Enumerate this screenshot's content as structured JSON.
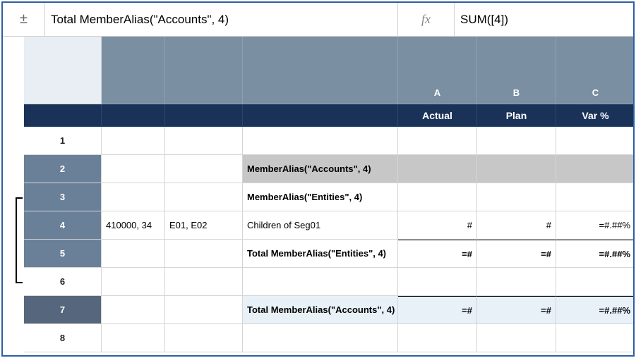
{
  "formulaBar": {
    "expandGlyph": "±",
    "nameBox": "Total MemberAlias(\"Accounts\", 4)",
    "fxGlyph": "fx",
    "formula": "SUM([4])"
  },
  "columns": {
    "A": {
      "letter": "A",
      "label": "Actual"
    },
    "B": {
      "letter": "B",
      "label": "Plan"
    },
    "C": {
      "letter": "C",
      "label": "Var %"
    }
  },
  "rows": [
    {
      "num": "1",
      "shade": "none",
      "c1": "",
      "c2": "",
      "c3": "",
      "a": "",
      "b": "",
      "c": "",
      "font": "normal",
      "bg": ""
    },
    {
      "num": "2",
      "shade": "shaded",
      "c1": "",
      "c2": "",
      "c3": "MemberAlias(\"Accounts\", 4)",
      "a": "",
      "b": "",
      "c": "",
      "font": "bold",
      "bg": "gray"
    },
    {
      "num": "3",
      "shade": "shaded",
      "c1": "",
      "c2": "",
      "c3": "MemberAlias(\"Entities\", 4)",
      "a": "",
      "b": "",
      "c": "",
      "font": "bold",
      "bg": ""
    },
    {
      "num": "4",
      "shade": "shaded",
      "c1": "410000, 34",
      "c2": "E01, E02",
      "c3": "Children of Seg01",
      "a": "#",
      "b": "#",
      "c": "=#.##%",
      "font": "normal",
      "bg": ""
    },
    {
      "num": "5",
      "shade": "shaded",
      "c1": "",
      "c2": "",
      "c3": "Total MemberAlias(\"Entities\", 4)",
      "a": "=#",
      "b": "=#",
      "c": "=#.##%",
      "font": "bold",
      "bg": "",
      "sumline": true
    },
    {
      "num": "6",
      "shade": "none",
      "c1": "",
      "c2": "",
      "c3": "",
      "a": "",
      "b": "",
      "c": "",
      "font": "normal",
      "bg": ""
    },
    {
      "num": "7",
      "shade": "dark",
      "c1": "",
      "c2": "",
      "c3": "Total MemberAlias(\"Accounts\", 4)",
      "a": "=#",
      "b": "=#",
      "c": "=#.##%",
      "font": "bold",
      "bg": "lightblue",
      "sumline": true
    },
    {
      "num": "8",
      "shade": "none",
      "c1": "",
      "c2": "",
      "c3": "",
      "a": "",
      "b": "",
      "c": "",
      "font": "normal",
      "bg": ""
    }
  ],
  "colors": {
    "headerBg": "#7b8fa3",
    "scenarioBg": "#1b3258",
    "rowShaded": "#6a8099",
    "rowDark": "#56677d",
    "grayFill": "#c7c7c7",
    "lightBlueFill": "#e8f1f8",
    "border": "#2c5fa5"
  }
}
